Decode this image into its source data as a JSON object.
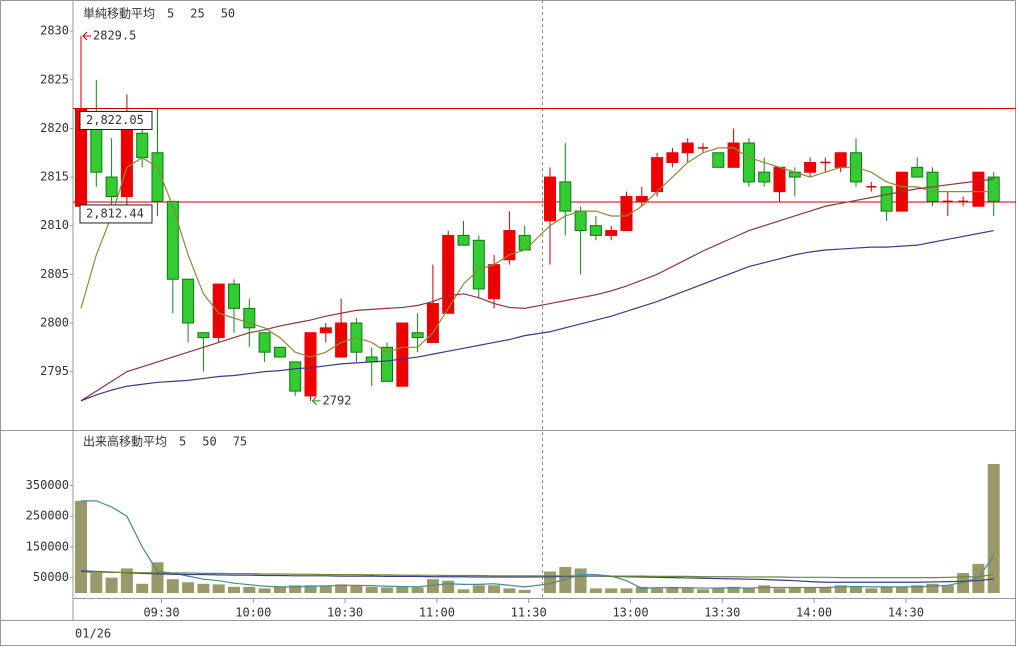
{
  "chart_data": [
    {
      "type": "candlestick",
      "legend_title": "単純移動平均",
      "up_color": "#ee0000",
      "down_color": "#33cc33",
      "ylim": [
        2789,
        2833.2
      ],
      "yticks": [
        2795,
        2800,
        2805,
        2810,
        2815,
        2820,
        2825,
        2830
      ],
      "categories": [
        null,
        null,
        null,
        null,
        null,
        "09:30",
        null,
        null,
        null,
        null,
        null,
        "10:00",
        null,
        null,
        null,
        null,
        null,
        "10:30",
        null,
        null,
        null,
        null,
        null,
        "11:00",
        null,
        null,
        null,
        null,
        null,
        "11:30",
        null,
        null,
        null,
        null,
        null,
        "13:00",
        null,
        null,
        null,
        null,
        null,
        "13:30",
        null,
        null,
        null,
        null,
        null,
        "14:00",
        null,
        null,
        null,
        null,
        null,
        "14:30",
        null,
        null,
        null,
        null,
        null,
        null
      ],
      "date_label": "01/26",
      "open": [
        2812,
        2820,
        2815,
        2813,
        2819.5,
        2817.5,
        2812.5,
        2804.5,
        2799,
        2798.5,
        2804,
        2801.5,
        2799,
        2797.5,
        2796,
        2792.5,
        2799,
        2796.5,
        2800,
        2796.5,
        2797.5,
        2793.5,
        2799,
        2798,
        2801,
        2809,
        2808.5,
        2802.5,
        2806.5,
        2809,
        2810.5,
        2814.5,
        2811.5,
        2810,
        2809,
        2809.5,
        2812.5,
        2813.5,
        2816.5,
        2817.5,
        2818,
        2817.5,
        2816,
        2818.5,
        2815.5,
        2813.5,
        2815.5,
        2815.5,
        2816.5,
        2816,
        2817.5,
        2814,
        2814,
        2811.5,
        2816,
        2815.5,
        2812.5,
        2812.5,
        2812,
        2815
      ],
      "high": [
        2829.5,
        2825,
        2819,
        2823.5,
        2821.5,
        2822,
        2812.5,
        2804.5,
        2799,
        2804,
        2804.5,
        2802.5,
        2799,
        2797.5,
        2796,
        2799,
        2800,
        2802.5,
        2800.5,
        2797.5,
        2798,
        2800,
        2801,
        2806,
        2809.5,
        2810.5,
        2809,
        2807,
        2811.5,
        2810,
        2816,
        2818.5,
        2812,
        2811,
        2810,
        2813.5,
        2814,
        2817.5,
        2818,
        2819,
        2818.5,
        2817.5,
        2820,
        2819,
        2817,
        2816,
        2816,
        2817,
        2817,
        2817.5,
        2819,
        2814.5,
        2814,
        2815.5,
        2817,
        2816,
        2813.5,
        2813,
        2815.5,
        2815.5
      ],
      "low": [
        2812,
        2814,
        2812,
        2812,
        2816,
        2811,
        2801,
        2798,
        2795,
        2798,
        2799,
        2797.5,
        2796,
        2796.5,
        2792.5,
        2792,
        2798,
        2796.5,
        2796,
        2793.5,
        2794,
        2793.5,
        2797,
        2798,
        2801,
        2808,
        2802.5,
        2801.5,
        2806,
        2807.5,
        2806,
        2809,
        2805,
        2808.5,
        2808.5,
        2809.5,
        2812,
        2813,
        2816,
        2816.5,
        2817.5,
        2816,
        2816,
        2814,
        2814,
        2812.5,
        2813,
        2815,
        2815.5,
        2815.5,
        2814,
        2813.5,
        2810.5,
        2811.5,
        2815,
        2812,
        2811,
        2812,
        2812,
        2811
      ],
      "close": [
        2822,
        2815.5,
        2813,
        2820,
        2817,
        2812.5,
        2804.5,
        2800,
        2798.5,
        2804,
        2801.5,
        2799.5,
        2797,
        2796.5,
        2793,
        2799,
        2799.5,
        2800,
        2797,
        2796,
        2794,
        2800,
        2798.5,
        2802,
        2809,
        2808,
        2803.5,
        2806,
        2809.5,
        2807.5,
        2815,
        2811.5,
        2809.5,
        2809,
        2809.5,
        2813,
        2813,
        2817,
        2817.5,
        2818.5,
        2818,
        2816,
        2818.5,
        2814.5,
        2814.5,
        2816,
        2815,
        2816.5,
        2816.5,
        2817.5,
        2814.5,
        2814,
        2811.5,
        2815.5,
        2815,
        2812.5,
        2812.5,
        2812.5,
        2815.5,
        2812.5
      ],
      "price_lines": [
        {
          "value": 2822.05,
          "label": "2,822.05"
        },
        {
          "value": 2812.44,
          "label": "2,812.44"
        }
      ],
      "series": [
        {
          "name": "5",
          "color": "#8a8a3a",
          "values": [
            2801.5,
            2807,
            2811,
            2816,
            2817,
            2816,
            2812,
            2807,
            2803,
            2801,
            2800.5,
            2800,
            2799.5,
            2798.5,
            2797,
            2796.5,
            2797,
            2798,
            2798.5,
            2798,
            2797,
            2797.5,
            2797.5,
            2799,
            2801.5,
            2804,
            2805.5,
            2806,
            2807,
            2807.5,
            2810,
            2811,
            2811.5,
            2811.5,
            2811,
            2811,
            2812,
            2813.5,
            2815,
            2816.5,
            2817.5,
            2818,
            2818,
            2817,
            2816.5,
            2816,
            2815.5,
            2815,
            2815.5,
            2816,
            2816,
            2815.5,
            2814.5,
            2814,
            2814,
            2813.5,
            2813.5,
            2813.5,
            2813.5,
            2813.5
          ]
        },
        {
          "name": "25",
          "color": "#8a3a3a",
          "values": [
            2792,
            2793,
            2794,
            2795,
            2795.5,
            2796,
            2796.5,
            2797,
            2797.5,
            2798,
            2798.5,
            2799,
            2799.3,
            2799.7,
            2800,
            2800.3,
            2800.7,
            2801,
            2801.3,
            2801.4,
            2801.5,
            2801.6,
            2801.8,
            2802.2,
            2802.8,
            2803,
            2802.6,
            2802,
            2801.6,
            2801.5,
            2802,
            2802.3,
            2802.6,
            2802.9,
            2803.3,
            2803.8,
            2804.4,
            2805,
            2805.8,
            2806.6,
            2807.4,
            2808.1,
            2808.8,
            2809.5,
            2810,
            2810.5,
            2811,
            2811.5,
            2812,
            2812.3,
            2812.6,
            2812.9,
            2813.2,
            2813.5,
            2813.8,
            2814,
            2814.2,
            2814.4,
            2814.6,
            2814.8
          ]
        },
        {
          "name": "50",
          "color": "#3a3a8a",
          "values": [
            2792,
            2792.6,
            2793.1,
            2793.5,
            2793.7,
            2793.9,
            2794,
            2794.1,
            2794.3,
            2794.5,
            2794.6,
            2794.8,
            2795,
            2795.1,
            2795.3,
            2795.4,
            2795.6,
            2795.8,
            2795.9,
            2796,
            2796.1,
            2796.3,
            2796.5,
            2796.8,
            2797.1,
            2797.4,
            2797.7,
            2798,
            2798.3,
            2798.7,
            2799.1,
            2799.5,
            2799.9,
            2800.3,
            2800.7,
            2801.2,
            2801.7,
            2802.2,
            2802.8,
            2803.4,
            2804,
            2804.6,
            2805.2,
            2805.8,
            2806.2,
            2806.6,
            2807,
            2807.3,
            2807.5,
            2807.6,
            2807.7,
            2807.8,
            2807.8,
            2807.9,
            2808,
            2808.3,
            2808.6,
            2808.9,
            2809.2,
            2809.5
          ]
        }
      ]
    },
    {
      "type": "bar",
      "legend_title": "出来高移動平均",
      "color": "#99996a",
      "ylim": [
        0,
        459000
      ],
      "yticks": [
        50000,
        150000,
        250000,
        350000
      ],
      "values": [
        300000,
        65000,
        50000,
        80000,
        30000,
        100000,
        45000,
        35000,
        30000,
        28000,
        20000,
        20000,
        15000,
        20000,
        25000,
        25000,
        25000,
        28000,
        25000,
        20000,
        18000,
        22000,
        18000,
        45000,
        40000,
        12000,
        25000,
        25000,
        15000,
        10000,
        70000,
        85000,
        80000,
        15000,
        15000,
        15000,
        20000,
        15000,
        20000,
        15000,
        12000,
        15000,
        20000,
        15000,
        25000,
        15000,
        18000,
        18000,
        20000,
        25000,
        20000,
        15000,
        18000,
        20000,
        25000,
        30000,
        25000,
        65000,
        95000,
        420000
      ],
      "series": [
        {
          "name": "5",
          "color": "#4a8a8a",
          "values": [
            300000,
            300000,
            280000,
            250000,
            150000,
            70000,
            65000,
            55000,
            45000,
            40000,
            32000,
            27000,
            22000,
            20000,
            20000,
            22000,
            23000,
            25000,
            25000,
            24000,
            22000,
            21000,
            20000,
            25000,
            30000,
            28000,
            28000,
            30000,
            25000,
            20000,
            30000,
            45000,
            60000,
            60000,
            55000,
            40000,
            15000,
            17000,
            17000,
            17000,
            16000,
            16000,
            17000,
            16000,
            18000,
            18000,
            18000,
            18000,
            18000,
            20000,
            21000,
            20000,
            20000,
            20000,
            20000,
            22000,
            25000,
            35000,
            50000,
            120000
          ]
        },
        {
          "name": "50",
          "color": "#3a3a8a",
          "values": [
            72000,
            70000,
            68000,
            66000,
            64000,
            62000,
            61000,
            60000,
            60000,
            59000,
            58000,
            58000,
            57000,
            57000,
            56000,
            56000,
            56000,
            55000,
            55000,
            55000,
            54000,
            54000,
            54000,
            53000,
            53000,
            53000,
            52000,
            52000,
            52000,
            52000,
            53000,
            54000,
            55000,
            55000,
            54000,
            53000,
            52000,
            51000,
            50000,
            49000,
            48000,
            47000,
            46000,
            45000,
            44000,
            42000,
            40000,
            37000,
            35000,
            35000,
            35000,
            35000,
            35000,
            35000,
            35000,
            36000,
            37000,
            38000,
            40000,
            46000
          ]
        },
        {
          "name": "75",
          "color": "#6a8a3a",
          "values": [
            68000,
            68000,
            67000,
            67000,
            66000,
            66000,
            65000,
            65000,
            64000,
            64000,
            63000,
            63000,
            62000,
            62000,
            61000,
            61000,
            60000,
            60000,
            60000,
            59000,
            59000,
            58000,
            58000,
            58000,
            57000,
            57000,
            57000,
            56000,
            56000,
            56000,
            56000,
            56000,
            56000,
            56000,
            55000,
            55000,
            55000,
            54000,
            54000,
            54000,
            53000,
            53000,
            53000,
            52000,
            52000,
            52000,
            51000,
            51000,
            51000,
            50000,
            50000,
            50000,
            50000,
            50000,
            50000,
            50000,
            51000,
            52000,
            53000,
            60000
          ]
        }
      ]
    }
  ]
}
